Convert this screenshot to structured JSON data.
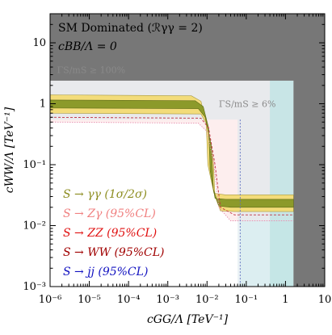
{
  "chart_data": {
    "type": "area",
    "title": "SM Dominated (ℛγγ = 2)",
    "subtitle": "cBB/Λ = 0",
    "xlabel": "cGG/Λ [TeV⁻¹]",
    "ylabel": "cWW/Λ [TeV⁻¹]",
    "xscale": "log",
    "yscale": "log",
    "xlim": [
      1e-06,
      10
    ],
    "ylim": [
      0.001,
      30
    ],
    "x_tick_labels": [
      "10⁻⁶",
      "10⁻⁵",
      "10⁻⁴",
      "10⁻³",
      "10⁻²",
      "10⁻¹",
      "1",
      "10"
    ],
    "y_tick_labels": [
      "10⁻³",
      "10⁻²",
      "10⁻¹",
      "1",
      "10"
    ],
    "x_ticks": [
      1e-06,
      1e-05,
      0.0001,
      0.001,
      0.01,
      0.1,
      1,
      10
    ],
    "y_ticks": [
      0.001,
      0.01,
      0.1,
      1,
      10
    ],
    "grid": false,
    "legend_placement": "bottom-left",
    "annotations": [
      {
        "text": "ΓS/mS ≥ 100%",
        "x": 1.5e-06,
        "y": 3.2
      },
      {
        "text": "ΓS/mS ≥ 6%",
        "x": 0.02,
        "y": 0.88
      }
    ],
    "series": [
      {
        "name": "S → γγ (1σ/2σ)",
        "color": "#8c8c1e"
      },
      {
        "name": "S → Zγ (95%CL)",
        "color": "#f08080"
      },
      {
        "name": "S → ZZ (95%CL)",
        "color": "#e01010"
      },
      {
        "name": "S → WW (95%CL)",
        "color": "#a00000"
      },
      {
        "name": "S → jj (95%CL)",
        "color": "#1010c0"
      }
    ],
    "regions": {
      "width_100": {
        "y_min": 2.4,
        "x_min": 0.5
      },
      "width_6": {
        "y_min": 0.55,
        "x_min": 0.06
      },
      "gamma_gamma_1sigma_upper": [
        [
          1e-06,
          1.15
        ],
        [
          0.005,
          1.12
        ],
        [
          0.008,
          0.9
        ],
        [
          0.011,
          0.4
        ],
        [
          0.012,
          0.08
        ],
        [
          0.016,
          0.028
        ],
        [
          0.03,
          0.027
        ],
        [
          1.6,
          0.027
        ]
      ],
      "gamma_gamma_1sigma_lower": [
        [
          1e-06,
          0.85
        ],
        [
          0.006,
          0.83
        ],
        [
          0.009,
          0.6
        ],
        [
          0.013,
          0.2
        ],
        [
          0.0145,
          0.04
        ],
        [
          0.02,
          0.021
        ],
        [
          0.04,
          0.02
        ],
        [
          1.6,
          0.02
        ]
      ],
      "gamma_gamma_2sigma_upper": [
        [
          1e-06,
          1.4
        ],
        [
          0.004,
          1.35
        ],
        [
          0.007,
          1.1
        ],
        [
          0.0095,
          0.5
        ],
        [
          0.0105,
          0.1
        ],
        [
          0.015,
          0.034
        ],
        [
          0.03,
          0.032
        ],
        [
          1.6,
          0.032
        ]
      ],
      "gamma_gamma_2sigma_lower": [
        [
          1e-06,
          0.7
        ],
        [
          0.007,
          0.68
        ],
        [
          0.01,
          0.45
        ],
        [
          0.0145,
          0.12
        ],
        [
          0.016,
          0.03
        ],
        [
          0.022,
          0.0175
        ],
        [
          0.05,
          0.017
        ],
        [
          1.6,
          0.017
        ]
      ],
      "Z_gamma_boundary": [
        [
          1e-06,
          0.5
        ],
        [
          0.006,
          0.48
        ],
        [
          0.01,
          0.35
        ],
        [
          0.015,
          0.1
        ],
        [
          0.02,
          0.02
        ],
        [
          0.04,
          0.012
        ],
        [
          0.1,
          0.012
        ],
        [
          1.6,
          0.012
        ]
      ],
      "ZZ_boundary": [
        [
          1e-06,
          0.6
        ],
        [
          0.007,
          0.58
        ],
        [
          0.011,
          0.4
        ],
        [
          0.016,
          0.1
        ],
        [
          0.022,
          0.02
        ],
        [
          0.05,
          0.015
        ],
        [
          1.6,
          0.015
        ]
      ],
      "jj_boundary_x": 0.07,
      "jj_band": [
        0.4,
        1.6
      ]
    }
  }
}
